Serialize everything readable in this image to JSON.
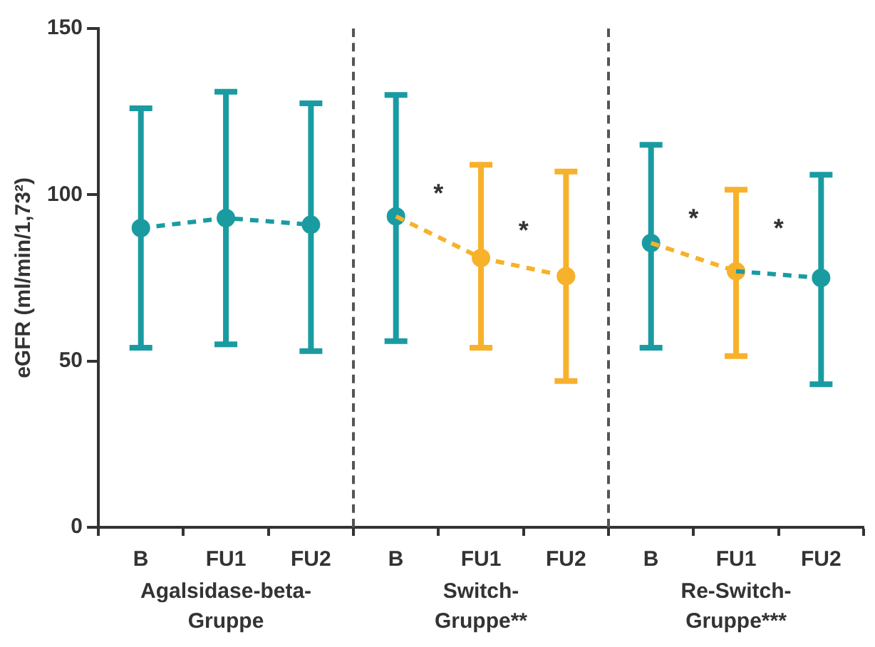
{
  "chart_data": {
    "type": "line",
    "ylabel": "eGFR (ml/min/1,73²)",
    "categories": [
      "B",
      "FU1",
      "FU2",
      "B",
      "FU1",
      "FU2",
      "B",
      "FU1",
      "FU2"
    ],
    "ylim": [
      0,
      150
    ],
    "yticks": [
      0,
      50,
      100,
      150
    ],
    "grid": false,
    "legend": false,
    "marker": "circle",
    "line_style": "dashed",
    "series": [
      {
        "marker": "none",
        "color": "#1a9ba1",
        "values": [
          90,
          93,
          91,
          null,
          null,
          null,
          null,
          null,
          null
        ]
      },
      {
        "marker": "none",
        "color": "#f7b12b",
        "values": [
          null,
          null,
          null,
          93.5,
          81,
          75.5,
          null,
          null,
          null
        ]
      },
      {
        "marker": "none",
        "color": "#f7b12b",
        "values": [
          null,
          null,
          null,
          null,
          null,
          null,
          85.5,
          77,
          null
        ]
      },
      {
        "marker": "none",
        "color": "#1a9ba1",
        "values": [
          null,
          null,
          null,
          null,
          null,
          null,
          null,
          77,
          75
        ]
      },
      {
        "type": "scatter",
        "values": [
          90,
          93,
          91,
          93.5,
          81,
          75.5,
          85.5,
          77,
          75
        ],
        "colors": [
          "#1a9ba1",
          "#1a9ba1",
          "#1a9ba1",
          "#1a9ba1",
          "#f7b12b",
          "#f7b12b",
          "#1a9ba1",
          "#f7b12b",
          "#1a9ba1"
        ],
        "errors": [
          [
            54,
            126
          ],
          [
            55,
            131
          ],
          [
            53,
            127.5
          ],
          [
            56,
            130
          ],
          [
            54,
            109
          ],
          [
            44,
            107
          ],
          [
            54,
            115
          ],
          [
            51.5,
            101.5
          ],
          [
            43,
            106
          ]
        ]
      }
    ],
    "annotations": [
      "*",
      "*",
      "*",
      "*",
      "Agalsidase-beta-\nGruppe",
      "Switch-\nGruppe**",
      "Re-Switch-\nGruppe***"
    ]
  }
}
